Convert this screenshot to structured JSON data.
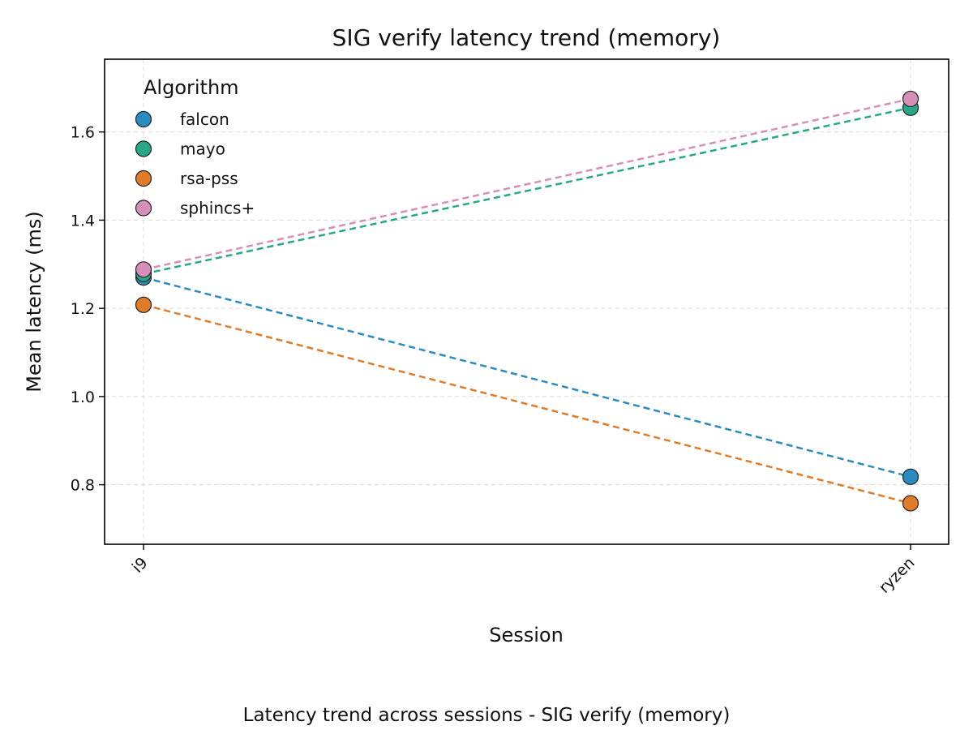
{
  "chart_data": {
    "type": "line",
    "title": "SIG verify latency trend (memory)",
    "xlabel": "Session",
    "ylabel": "Mean latency (ms)",
    "caption": "Latency trend across sessions - SIG verify (memory)",
    "categories": [
      "i9",
      "ryzen"
    ],
    "ylim": [
      0.665,
      1.765
    ],
    "yticks": [
      0.8,
      1.0,
      1.2,
      1.4,
      1.6
    ],
    "ytick_labels": [
      "0.8",
      "1.0",
      "1.2",
      "1.4",
      "1.6"
    ],
    "grid": true,
    "legend": {
      "title": "Algorithm",
      "placement": "top-left"
    },
    "series": [
      {
        "name": "falcon",
        "color": "#2a8bbf",
        "values": [
          1.27,
          0.818
        ]
      },
      {
        "name": "mayo",
        "color": "#26a888",
        "values": [
          1.278,
          1.655
        ]
      },
      {
        "name": "rsa-pss",
        "color": "#e07b28",
        "values": [
          1.208,
          0.758
        ]
      },
      {
        "name": "sphincs+",
        "color": "#d68fb8",
        "values": [
          1.288,
          1.675
        ]
      }
    ]
  }
}
